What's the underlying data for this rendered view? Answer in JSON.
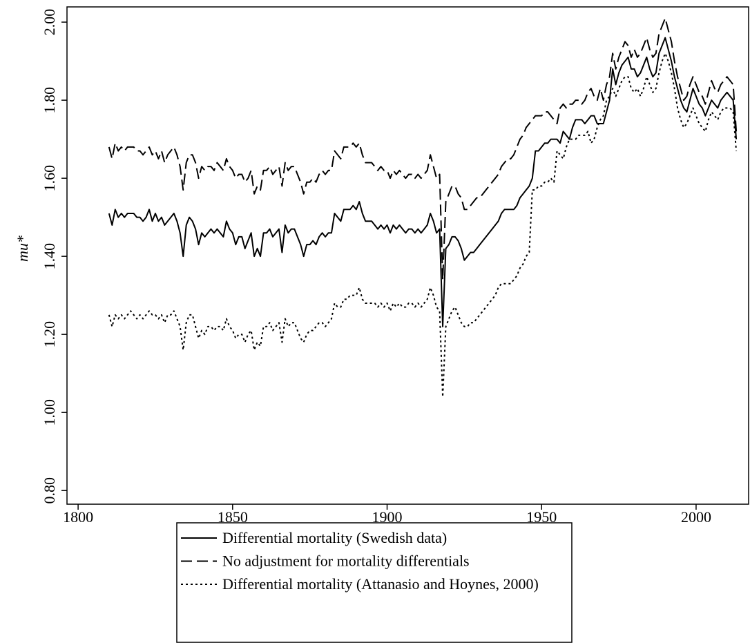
{
  "chart_data": {
    "type": "line",
    "y_label": "mu*",
    "xlim": [
      1796.4,
      2017
    ],
    "ylim": [
      0.765,
      2.039
    ],
    "xticks": [
      1800,
      1850,
      1900,
      1950,
      2000
    ],
    "yticks": [
      {
        "value": 0.8,
        "label": "0.80"
      },
      {
        "value": 1,
        "label": "1.00"
      },
      {
        "value": 1.2,
        "label": "1.20"
      },
      {
        "value": 1.4,
        "label": "1.40"
      },
      {
        "value": 1.6,
        "label": "1.60"
      },
      {
        "value": 1.8,
        "label": "1.80"
      },
      {
        "value": 2,
        "label": "2.00"
      }
    ],
    "x": [
      1810,
      1811,
      1812,
      1813,
      1814,
      1815,
      1816,
      1817,
      1818,
      1819,
      1820,
      1821,
      1822,
      1823,
      1824,
      1825,
      1826,
      1827,
      1828,
      1829,
      1830,
      1831,
      1832,
      1833,
      1834,
      1835,
      1836,
      1837,
      1838,
      1839,
      1840,
      1841,
      1842,
      1843,
      1844,
      1845,
      1846,
      1847,
      1848,
      1849,
      1850,
      1851,
      1852,
      1853,
      1854,
      1855,
      1856,
      1857,
      1858,
      1859,
      1860,
      1861,
      1862,
      1863,
      1864,
      1865,
      1866,
      1867,
      1868,
      1869,
      1870,
      1871,
      1872,
      1873,
      1874,
      1875,
      1876,
      1877,
      1878,
      1879,
      1880,
      1881,
      1882,
      1883,
      1884,
      1885,
      1886,
      1887,
      1888,
      1889,
      1890,
      1891,
      1892,
      1893,
      1894,
      1895,
      1896,
      1897,
      1898,
      1899,
      1900,
      1901,
      1902,
      1903,
      1904,
      1905,
      1906,
      1907,
      1908,
      1909,
      1910,
      1911,
      1912,
      1913,
      1914,
      1915,
      1916,
      1917,
      1918,
      1919,
      1920,
      1921,
      1922,
      1923,
      1924,
      1925,
      1926,
      1927,
      1928,
      1929,
      1930,
      1931,
      1932,
      1933,
      1934,
      1935,
      1936,
      1937,
      1938,
      1939,
      1940,
      1941,
      1942,
      1943,
      1944,
      1945,
      1946,
      1947,
      1948,
      1949,
      1950,
      1951,
      1952,
      1953,
      1954,
      1955,
      1956,
      1957,
      1958,
      1959,
      1960,
      1961,
      1962,
      1963,
      1964,
      1965,
      1966,
      1967,
      1968,
      1969,
      1970,
      1971,
      1972,
      1973,
      1974,
      1975,
      1976,
      1977,
      1978,
      1979,
      1980,
      1981,
      1982,
      1983,
      1984,
      1985,
      1986,
      1987,
      1988,
      1989,
      1990,
      1991,
      1992,
      1993,
      1994,
      1995,
      1996,
      1997,
      1998,
      1999,
      2000,
      2001,
      2002,
      2003,
      2004,
      2005,
      2006,
      2007,
      2008,
      2009,
      2010,
      2011,
      2012,
      2013
    ],
    "series": [
      {
        "name": "Differential mortality (Swedish data)",
        "color": "#000000",
        "dash": "none",
        "values": [
          1.51,
          1.48,
          1.52,
          1.5,
          1.51,
          1.5,
          1.51,
          1.51,
          1.51,
          1.5,
          1.5,
          1.49,
          1.5,
          1.52,
          1.49,
          1.51,
          1.49,
          1.5,
          1.48,
          1.49,
          1.5,
          1.51,
          1.49,
          1.46,
          1.4,
          1.48,
          1.5,
          1.49,
          1.47,
          1.43,
          1.46,
          1.45,
          1.46,
          1.47,
          1.46,
          1.47,
          1.46,
          1.45,
          1.49,
          1.47,
          1.46,
          1.43,
          1.45,
          1.45,
          1.42,
          1.44,
          1.46,
          1.4,
          1.42,
          1.4,
          1.46,
          1.46,
          1.47,
          1.45,
          1.46,
          1.47,
          1.41,
          1.48,
          1.46,
          1.47,
          1.47,
          1.45,
          1.43,
          1.4,
          1.43,
          1.43,
          1.44,
          1.43,
          1.45,
          1.46,
          1.45,
          1.46,
          1.46,
          1.51,
          1.5,
          1.49,
          1.52,
          1.52,
          1.52,
          1.53,
          1.52,
          1.54,
          1.51,
          1.49,
          1.49,
          1.49,
          1.48,
          1.47,
          1.48,
          1.47,
          1.48,
          1.46,
          1.48,
          1.47,
          1.48,
          1.47,
          1.46,
          1.47,
          1.47,
          1.46,
          1.47,
          1.46,
          1.47,
          1.48,
          1.51,
          1.49,
          1.46,
          1.47,
          1.22,
          1.42,
          1.43,
          1.45,
          1.45,
          1.44,
          1.42,
          1.39,
          1.4,
          1.41,
          1.41,
          1.42,
          1.43,
          1.44,
          1.45,
          1.46,
          1.47,
          1.48,
          1.49,
          1.51,
          1.52,
          1.52,
          1.52,
          1.52,
          1.53,
          1.55,
          1.56,
          1.57,
          1.58,
          1.6,
          1.67,
          1.67,
          1.68,
          1.69,
          1.69,
          1.7,
          1.7,
          1.7,
          1.69,
          1.72,
          1.71,
          1.7,
          1.73,
          1.75,
          1.75,
          1.75,
          1.74,
          1.75,
          1.76,
          1.76,
          1.74,
          1.74,
          1.74,
          1.77,
          1.8,
          1.88,
          1.84,
          1.87,
          1.89,
          1.9,
          1.91,
          1.88,
          1.88,
          1.86,
          1.87,
          1.89,
          1.91,
          1.88,
          1.86,
          1.87,
          1.92,
          1.94,
          1.96,
          1.93,
          1.9,
          1.86,
          1.83,
          1.8,
          1.78,
          1.77,
          1.8,
          1.83,
          1.81,
          1.79,
          1.78,
          1.76,
          1.78,
          1.8,
          1.79,
          1.78,
          1.8,
          1.81,
          1.82,
          1.81,
          1.8,
          1.7
        ]
      },
      {
        "name": "No adjustment for mortality differentials",
        "color": "#000000",
        "dash": "16,7",
        "values": [
          1.68,
          1.65,
          1.69,
          1.67,
          1.68,
          1.67,
          1.68,
          1.68,
          1.68,
          1.67,
          1.67,
          1.66,
          1.67,
          1.68,
          1.66,
          1.67,
          1.65,
          1.67,
          1.64,
          1.66,
          1.67,
          1.68,
          1.66,
          1.63,
          1.57,
          1.64,
          1.66,
          1.66,
          1.64,
          1.6,
          1.63,
          1.62,
          1.63,
          1.63,
          1.62,
          1.64,
          1.63,
          1.62,
          1.65,
          1.63,
          1.62,
          1.6,
          1.61,
          1.61,
          1.59,
          1.6,
          1.62,
          1.56,
          1.58,
          1.57,
          1.62,
          1.62,
          1.63,
          1.61,
          1.62,
          1.63,
          1.58,
          1.64,
          1.62,
          1.63,
          1.63,
          1.61,
          1.59,
          1.56,
          1.59,
          1.59,
          1.6,
          1.59,
          1.61,
          1.62,
          1.61,
          1.62,
          1.62,
          1.67,
          1.66,
          1.65,
          1.68,
          1.68,
          1.68,
          1.69,
          1.68,
          1.69,
          1.66,
          1.64,
          1.64,
          1.64,
          1.63,
          1.62,
          1.63,
          1.62,
          1.62,
          1.6,
          1.62,
          1.61,
          1.62,
          1.61,
          1.6,
          1.61,
          1.61,
          1.6,
          1.61,
          1.6,
          1.61,
          1.62,
          1.66,
          1.63,
          1.6,
          1.61,
          1.34,
          1.54,
          1.56,
          1.58,
          1.58,
          1.56,
          1.55,
          1.52,
          1.52,
          1.53,
          1.54,
          1.55,
          1.55,
          1.56,
          1.57,
          1.58,
          1.59,
          1.6,
          1.61,
          1.63,
          1.64,
          1.65,
          1.65,
          1.66,
          1.68,
          1.7,
          1.71,
          1.73,
          1.74,
          1.75,
          1.76,
          1.76,
          1.76,
          1.77,
          1.77,
          1.76,
          1.75,
          1.74,
          1.78,
          1.79,
          1.78,
          1.79,
          1.79,
          1.8,
          1.8,
          1.79,
          1.8,
          1.82,
          1.83,
          1.81,
          1.8,
          1.83,
          1.8,
          1.84,
          1.86,
          1.92,
          1.88,
          1.91,
          1.93,
          1.95,
          1.94,
          1.91,
          1.93,
          1.91,
          1.92,
          1.94,
          1.96,
          1.93,
          1.91,
          1.92,
          1.97,
          1.99,
          2.01,
          1.98,
          1.95,
          1.9,
          1.86,
          1.83,
          1.8,
          1.81,
          1.84,
          1.86,
          1.84,
          1.82,
          1.81,
          1.79,
          1.82,
          1.85,
          1.83,
          1.82,
          1.84,
          1.85,
          1.86,
          1.85,
          1.84,
          1.72
        ]
      },
      {
        "name": "Differential mortality (Attanasio and Hoynes, 2000)",
        "color": "#000000",
        "dash": "3,4",
        "values": [
          1.25,
          1.22,
          1.25,
          1.24,
          1.25,
          1.24,
          1.25,
          1.26,
          1.25,
          1.24,
          1.25,
          1.24,
          1.25,
          1.26,
          1.25,
          1.25,
          1.24,
          1.25,
          1.23,
          1.25,
          1.25,
          1.26,
          1.24,
          1.22,
          1.16,
          1.23,
          1.25,
          1.25,
          1.22,
          1.19,
          1.21,
          1.2,
          1.22,
          1.22,
          1.21,
          1.22,
          1.22,
          1.21,
          1.24,
          1.22,
          1.21,
          1.19,
          1.2,
          1.2,
          1.18,
          1.2,
          1.21,
          1.16,
          1.18,
          1.17,
          1.22,
          1.22,
          1.23,
          1.21,
          1.22,
          1.23,
          1.18,
          1.24,
          1.22,
          1.23,
          1.23,
          1.21,
          1.19,
          1.18,
          1.2,
          1.21,
          1.21,
          1.22,
          1.23,
          1.23,
          1.22,
          1.23,
          1.24,
          1.28,
          1.27,
          1.27,
          1.29,
          1.29,
          1.3,
          1.3,
          1.3,
          1.32,
          1.29,
          1.28,
          1.28,
          1.28,
          1.28,
          1.27,
          1.28,
          1.27,
          1.28,
          1.26,
          1.28,
          1.27,
          1.28,
          1.27,
          1.27,
          1.28,
          1.28,
          1.27,
          1.28,
          1.27,
          1.28,
          1.29,
          1.32,
          1.3,
          1.27,
          1.26,
          1.04,
          1.22,
          1.24,
          1.26,
          1.27,
          1.25,
          1.23,
          1.22,
          1.22,
          1.23,
          1.23,
          1.24,
          1.25,
          1.26,
          1.27,
          1.28,
          1.29,
          1.3,
          1.32,
          1.33,
          1.33,
          1.33,
          1.33,
          1.34,
          1.35,
          1.37,
          1.38,
          1.4,
          1.41,
          1.57,
          1.57,
          1.58,
          1.58,
          1.59,
          1.59,
          1.6,
          1.59,
          1.67,
          1.66,
          1.65,
          1.68,
          1.7,
          1.7,
          1.7,
          1.71,
          1.71,
          1.71,
          1.72,
          1.69,
          1.7,
          1.73,
          1.75,
          1.76,
          1.8,
          1.81,
          1.83,
          1.81,
          1.83,
          1.85,
          1.86,
          1.86,
          1.83,
          1.82,
          1.83,
          1.81,
          1.83,
          1.86,
          1.84,
          1.82,
          1.83,
          1.87,
          1.9,
          1.92,
          1.9,
          1.87,
          1.83,
          1.78,
          1.75,
          1.73,
          1.74,
          1.76,
          1.78,
          1.76,
          1.74,
          1.73,
          1.72,
          1.75,
          1.77,
          1.76,
          1.75,
          1.77,
          1.78,
          1.78,
          1.78,
          1.77,
          1.67
        ]
      }
    ]
  }
}
